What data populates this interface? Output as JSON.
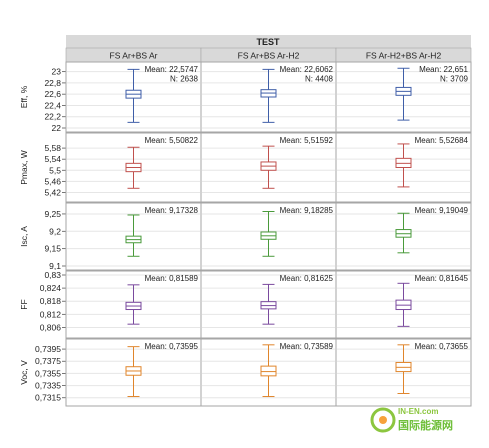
{
  "chart_data": {
    "type": "boxplot",
    "title": "TEST",
    "groups": [
      "FS Ar+BS Ar",
      "FS Ar+BS Ar-H2",
      "FS Ar-H2+BS Ar-H2"
    ],
    "panels": [
      {
        "ylabel": "Eff, %",
        "color": "#3f5ea8",
        "ylim": [
          22,
          23.1
        ],
        "ticks": [
          22,
          22.2,
          22.4,
          22.6,
          22.8,
          23
        ],
        "tick_labels": [
          "22",
          "22,2",
          "22,4",
          "22,6",
          "22,8",
          "23"
        ],
        "boxes": [
          {
            "min": 22.1,
            "q1": 22.53,
            "median": 22.6,
            "q3": 22.67,
            "max": 23.04
          },
          {
            "min": 22.1,
            "q1": 22.55,
            "median": 22.62,
            "q3": 22.68,
            "max": 23.04
          },
          {
            "min": 22.14,
            "q1": 22.58,
            "median": 22.65,
            "q3": 22.72,
            "max": 23.06
          }
        ],
        "annotations": [
          [
            "Mean: 22,5747",
            "N: 2638"
          ],
          [
            "Mean: 22,6062",
            "N: 4408"
          ],
          [
            "Mean: 22,651",
            "N: 3709"
          ]
        ]
      },
      {
        "ylabel": "Pmax, W",
        "color": "#c0504d",
        "ylim": [
          5.4,
          5.62
        ],
        "ticks": [
          5.42,
          5.46,
          5.5,
          5.54,
          5.58
        ],
        "tick_labels": [
          "5,42",
          "5,46",
          "5,5",
          "5,54",
          "5,58"
        ],
        "boxes": [
          {
            "min": 5.435,
            "q1": 5.495,
            "median": 5.51,
            "q3": 5.525,
            "max": 5.583
          },
          {
            "min": 5.435,
            "q1": 5.5,
            "median": 5.515,
            "q3": 5.53,
            "max": 5.587
          },
          {
            "min": 5.44,
            "q1": 5.51,
            "median": 5.525,
            "q3": 5.543,
            "max": 5.595
          }
        ],
        "annotations": [
          [
            "Mean: 5,50822"
          ],
          [
            "Mean: 5,51592"
          ],
          [
            "Mean: 5,52684"
          ]
        ]
      },
      {
        "ylabel": "Isc, A",
        "color": "#4a9a3b",
        "ylim": [
          9.1,
          9.27
        ],
        "ticks": [
          9.1,
          9.15,
          9.2,
          9.25
        ],
        "tick_labels": [
          "9,1",
          "9,15",
          "9,2",
          "9,25"
        ],
        "boxes": [
          {
            "min": 9.128,
            "q1": 9.167,
            "median": 9.176,
            "q3": 9.186,
            "max": 9.247
          },
          {
            "min": 9.128,
            "q1": 9.177,
            "median": 9.187,
            "q3": 9.198,
            "max": 9.257
          },
          {
            "min": 9.138,
            "q1": 9.183,
            "median": 9.193,
            "q3": 9.205,
            "max": 9.252
          }
        ],
        "annotations": [
          [
            "Mean: 9,17328"
          ],
          [
            "Mean: 9,18285"
          ],
          [
            "Mean: 9,19049"
          ]
        ]
      },
      {
        "ylabel": "FF",
        "color": "#7a4a9e",
        "ylim": [
          0.803,
          0.83
        ],
        "ticks": [
          0.806,
          0.812,
          0.818,
          0.824,
          0.83
        ],
        "tick_labels": [
          "0,806",
          "0,812",
          "0,818",
          "0,824",
          "0,83"
        ],
        "boxes": [
          {
            "min": 0.8075,
            "q1": 0.8142,
            "median": 0.8158,
            "q3": 0.8175,
            "max": 0.8255
          },
          {
            "min": 0.8075,
            "q1": 0.8145,
            "median": 0.816,
            "q3": 0.8178,
            "max": 0.8257
          },
          {
            "min": 0.8065,
            "q1": 0.8142,
            "median": 0.8162,
            "q3": 0.8185,
            "max": 0.8262
          }
        ],
        "annotations": [
          [
            "Mean: 0,81589"
          ],
          [
            "Mean: 0,81625"
          ],
          [
            "Mean: 0,81645"
          ]
        ]
      },
      {
        "ylabel": "Voc, V",
        "color": "#e0852b",
        "ylim": [
          0.7308,
          0.7405
        ],
        "ticks": [
          0.7315,
          0.7335,
          0.7355,
          0.7375,
          0.7395
        ],
        "tick_labels": [
          "0,7315",
          "0,7335",
          "0,7355",
          "0,7375",
          "0,7395"
        ],
        "boxes": [
          {
            "min": 0.7317,
            "q1": 0.7352,
            "median": 0.7359,
            "q3": 0.7366,
            "max": 0.7399
          },
          {
            "min": 0.7317,
            "q1": 0.7351,
            "median": 0.7358,
            "q3": 0.7367,
            "max": 0.7402
          },
          {
            "min": 0.7322,
            "q1": 0.7358,
            "median": 0.7365,
            "q3": 0.7373,
            "max": 0.7402
          }
        ],
        "annotations": [
          [
            "Mean: 0,73595"
          ],
          [
            "Mean: 0,73589"
          ],
          [
            "Mean: 0,73655"
          ]
        ]
      }
    ]
  },
  "watermark": {
    "site": "IN-EN.com",
    "name": "国际能源网"
  }
}
